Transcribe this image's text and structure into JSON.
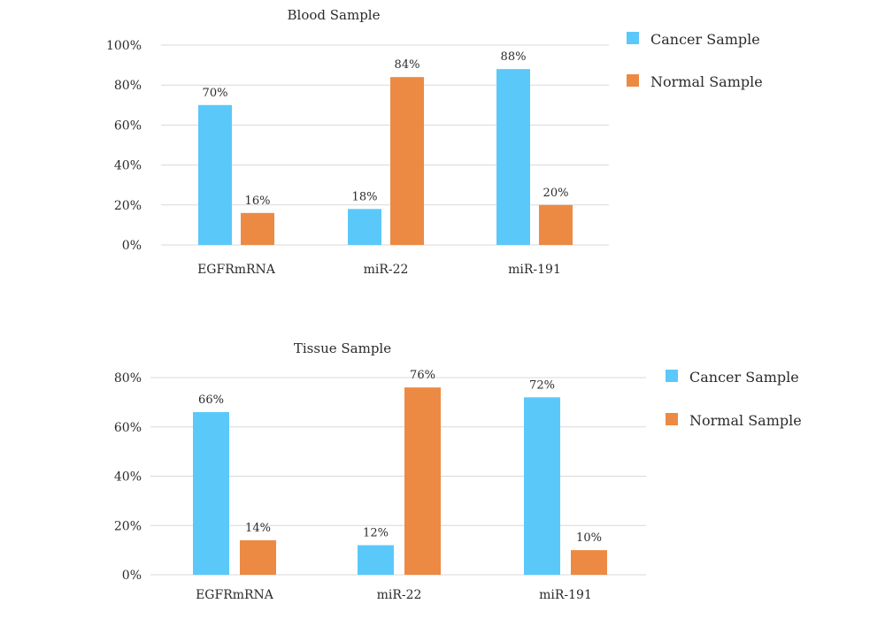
{
  "colors": {
    "cancer": "#5bc8fa",
    "normal": "#ec8a44",
    "grid": "#d9d9d9"
  },
  "chart_data": [
    {
      "type": "bar",
      "title": "Blood Sample",
      "categories": [
        "EGFRmRNA",
        "miR-22",
        "miR-191"
      ],
      "series": [
        {
          "name": "Cancer Sample",
          "values": [
            70,
            18,
            88
          ]
        },
        {
          "name": "Normal Sample",
          "values": [
            16,
            84,
            20
          ]
        }
      ],
      "value_labels": [
        [
          "70%",
          "18%",
          "88%"
        ],
        [
          "16%",
          "84%",
          "20%"
        ]
      ],
      "ylim": [
        0,
        100
      ],
      "yticks": [
        0,
        20,
        40,
        60,
        80,
        100
      ],
      "ytick_labels": [
        "0%",
        "20%",
        "40%",
        "60%",
        "80%",
        "100%"
      ],
      "xlabel": "",
      "ylabel": "",
      "grid": true,
      "legend": "right"
    },
    {
      "type": "bar",
      "title": "Tissue Sample",
      "categories": [
        "EGFRmRNA",
        "miR-22",
        "miR-191"
      ],
      "series": [
        {
          "name": "Cancer Sample",
          "values": [
            66,
            12,
            72
          ]
        },
        {
          "name": "Normal Sample",
          "values": [
            14,
            76,
            10
          ]
        }
      ],
      "value_labels": [
        [
          "66%",
          "12%",
          "72%"
        ],
        [
          "14%",
          "76%",
          "10%"
        ]
      ],
      "ylim": [
        0,
        80
      ],
      "yticks": [
        0,
        20,
        40,
        60,
        80
      ],
      "ytick_labels": [
        "0%",
        "20%",
        "40%",
        "60%",
        "80%"
      ],
      "xlabel": "",
      "ylabel": "",
      "grid": true,
      "legend": "right"
    }
  ]
}
